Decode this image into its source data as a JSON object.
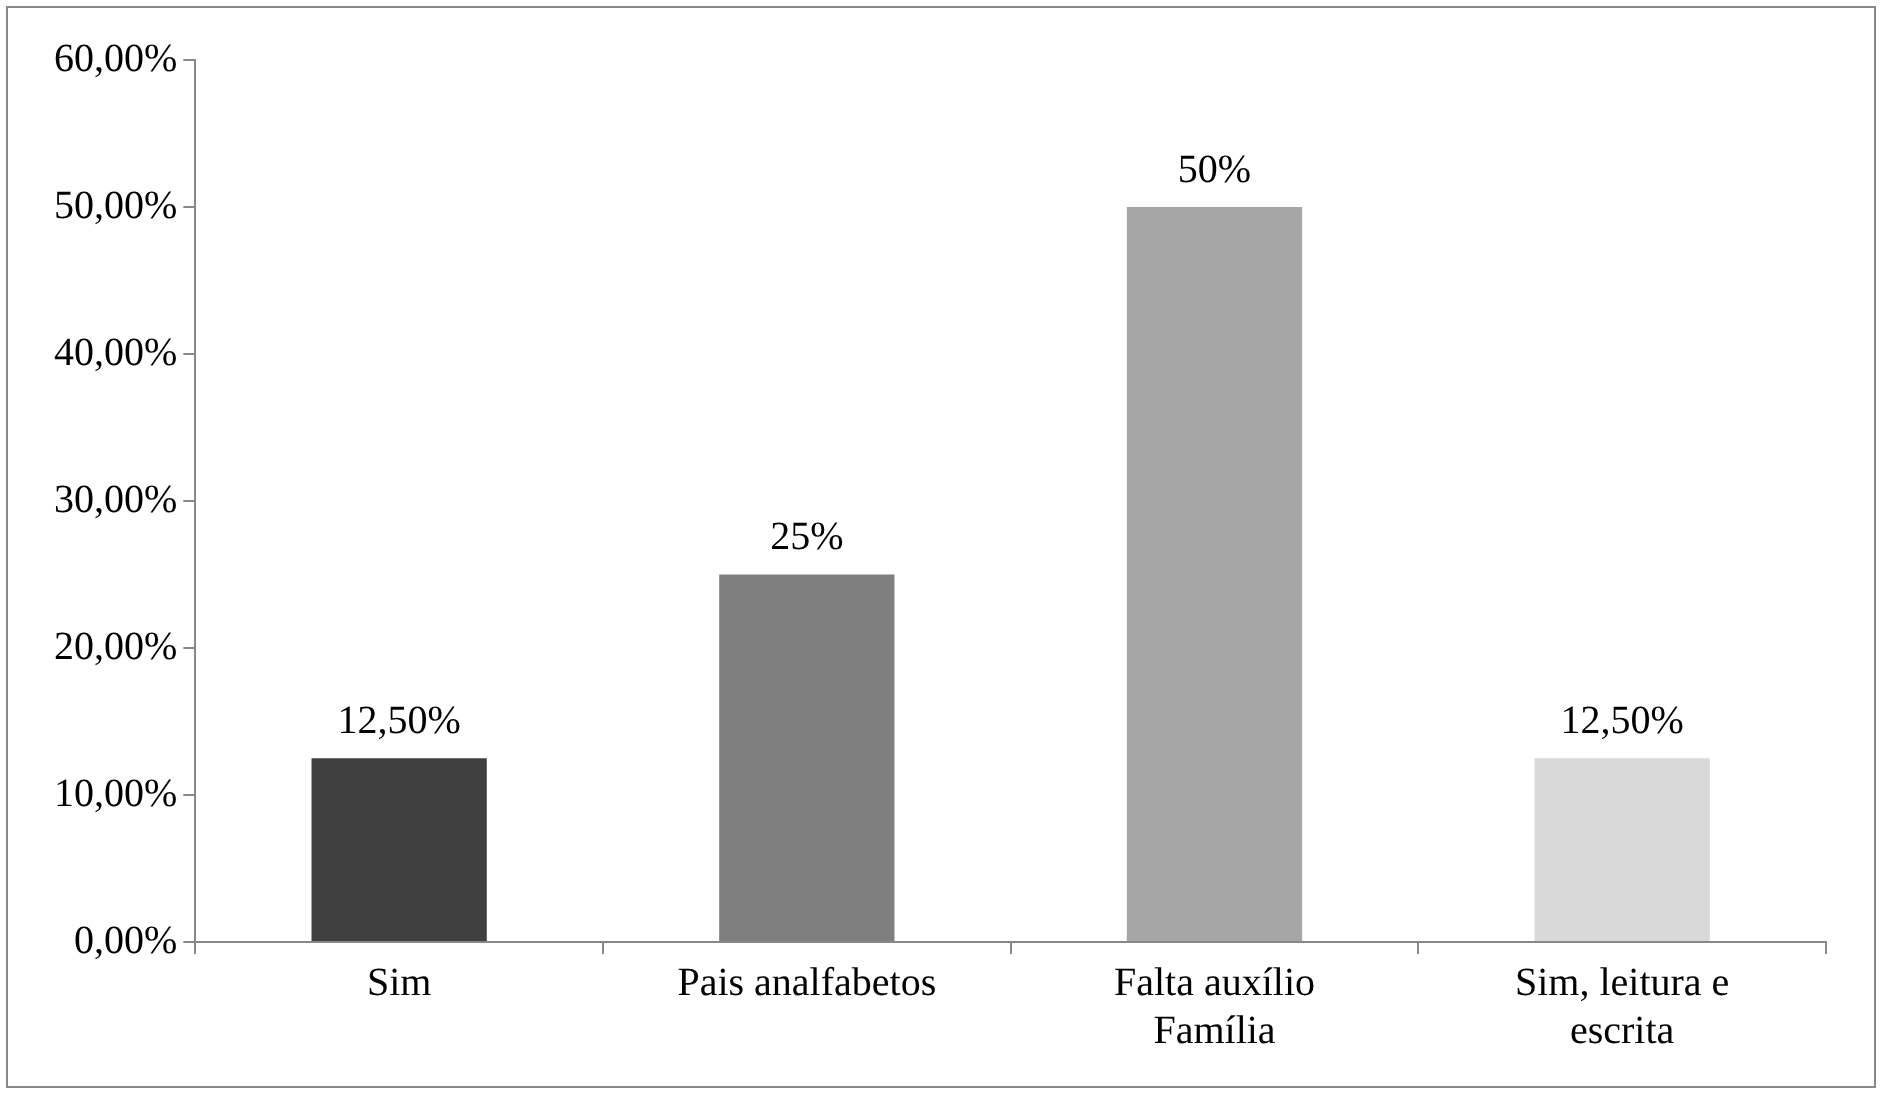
{
  "chart_data": {
    "type": "bar",
    "categories": [
      "Sim",
      "Pais analfabetos",
      "Falta auxílio Família",
      "Sim, leitura e escrita"
    ],
    "values": [
      12.5,
      25,
      50,
      12.5
    ],
    "colors": [
      "#404040",
      "#7f7f7f",
      "#a6a6a6",
      "#d9d9d9"
    ],
    "value_labels": [
      "12,50%",
      "25%",
      "50%",
      "12,50%"
    ],
    "ylim": [
      0,
      60
    ],
    "yticks": [
      {
        "value": 0,
        "label": "0,00%"
      },
      {
        "value": 10,
        "label": "10,00%"
      },
      {
        "value": 20,
        "label": "20,00%"
      },
      {
        "value": 30,
        "label": "30,00%"
      },
      {
        "value": 40,
        "label": "40,00%"
      },
      {
        "value": 50,
        "label": "50,00%"
      },
      {
        "value": 60,
        "label": "60,00%"
      }
    ],
    "grid": false,
    "legend": false
  }
}
